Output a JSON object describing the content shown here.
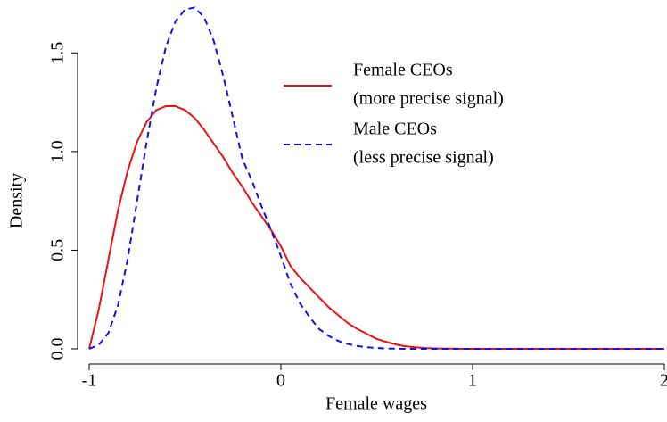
{
  "chart_data": {
    "type": "line",
    "xlabel": "Female wages",
    "ylabel": "Density",
    "x": [
      -1,
      -0.95,
      -0.9,
      -0.85,
      -0.8,
      -0.75,
      -0.7,
      -0.65,
      -0.6,
      -0.55,
      -0.5,
      -0.45,
      -0.4,
      -0.35,
      -0.3,
      -0.25,
      -0.2,
      -0.15,
      -0.1,
      -0.05,
      0,
      0.05,
      0.1,
      0.15,
      0.2,
      0.25,
      0.3,
      0.35,
      0.4,
      0.45,
      0.5,
      0.55,
      0.6,
      0.65,
      0.7,
      0.75,
      0.8,
      0.85,
      0.9,
      0.95,
      1,
      2
    ],
    "series": [
      {
        "name": "Female CEOs",
        "description": "(more precise signal)",
        "color": "#ee1111",
        "dash": false,
        "values": [
          0,
          0.2,
          0.45,
          0.7,
          0.9,
          1.05,
          1.15,
          1.21,
          1.23,
          1.23,
          1.21,
          1.17,
          1.11,
          1.04,
          0.97,
          0.89,
          0.82,
          0.74,
          0.67,
          0.6,
          0.52,
          0.42,
          0.36,
          0.31,
          0.26,
          0.21,
          0.17,
          0.13,
          0.1,
          0.075,
          0.05,
          0.035,
          0.022,
          0.013,
          0.008,
          0.004,
          0.002,
          0.001,
          0.001,
          0,
          0,
          0
        ]
      },
      {
        "name": "Male CEOs",
        "description": "(less precise signal)",
        "color": "#1111ee",
        "dash": true,
        "values": [
          0,
          0.02,
          0.08,
          0.22,
          0.45,
          0.75,
          1.05,
          1.32,
          1.53,
          1.66,
          1.72,
          1.73,
          1.68,
          1.56,
          1.38,
          1.17,
          0.96,
          0.85,
          0.72,
          0.6,
          0.47,
          0.33,
          0.23,
          0.16,
          0.1,
          0.065,
          0.04,
          0.024,
          0.014,
          0.008,
          0.004,
          0.002,
          0.001,
          0,
          0,
          0,
          0,
          0,
          0,
          0,
          0,
          0
        ]
      }
    ],
    "xlim": [
      -1,
      2
    ],
    "ylim": [
      0,
      1.75
    ],
    "xticks": [
      -1,
      0,
      1,
      2
    ],
    "yticks": [
      {
        "value": 0,
        "label": "0.0"
      },
      0.5,
      {
        "value": 1,
        "label": "1.0"
      },
      1.5
    ],
    "legend": "top-right",
    "grid": false
  }
}
